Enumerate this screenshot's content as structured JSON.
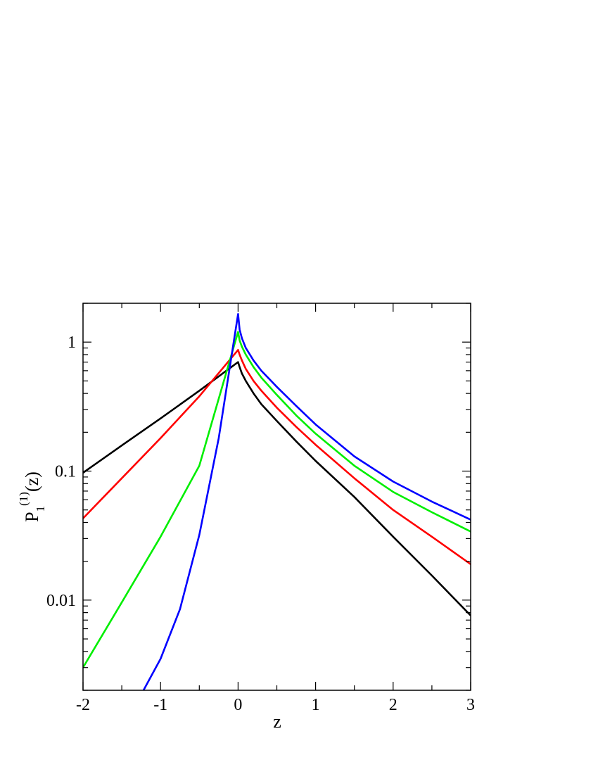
{
  "chart_data": {
    "type": "line",
    "title": "",
    "xlabel": "z",
    "ylabel": {
      "base": "P",
      "subscript": "1",
      "superscript": "(1)",
      "suffix": "(z)"
    },
    "xlim": [
      -2,
      3
    ],
    "ylim": [
      0.002,
      2.0
    ],
    "yscale": "log",
    "grid": false,
    "legend": "none",
    "x_ticks": [
      {
        "value": -2,
        "label": "-2"
      },
      {
        "value": -1,
        "label": "-1"
      },
      {
        "value": 0,
        "label": "0"
      },
      {
        "value": 1,
        "label": "1"
      },
      {
        "value": 2,
        "label": "2"
      },
      {
        "value": 3,
        "label": "3"
      }
    ],
    "y_ticks": [
      {
        "value": 0.01,
        "label": "0.01"
      },
      {
        "value": 0.1,
        "label": "0.1"
      },
      {
        "value": 1,
        "label": "1"
      }
    ],
    "series": [
      {
        "color": "#000000",
        "x": [
          -2,
          -1.5,
          -1,
          -0.5,
          0,
          0.02,
          0.05,
          0.1,
          0.2,
          0.3,
          0.5,
          0.75,
          1.0,
          1.5,
          2.0,
          2.5,
          3.0
        ],
        "y": [
          0.097,
          0.158,
          0.256,
          0.42,
          0.7,
          0.64,
          0.57,
          0.5,
          0.4,
          0.33,
          0.245,
          0.17,
          0.12,
          0.063,
          0.031,
          0.0155,
          0.0076
        ]
      },
      {
        "color": "#ff0000",
        "x": [
          -2,
          -1.5,
          -1,
          -0.5,
          0,
          0.02,
          0.05,
          0.1,
          0.2,
          0.3,
          0.5,
          0.75,
          1.0,
          1.5,
          2.0,
          2.5,
          3.0
        ],
        "y": [
          0.043,
          0.088,
          0.18,
          0.38,
          0.87,
          0.8,
          0.72,
          0.62,
          0.5,
          0.42,
          0.31,
          0.22,
          0.16,
          0.088,
          0.05,
          0.031,
          0.019
        ]
      },
      {
        "color": "#00ee00",
        "x": [
          -2,
          -1.5,
          -1,
          -0.5,
          0,
          0.02,
          0.05,
          0.1,
          0.2,
          0.3,
          0.5,
          0.75,
          1.0,
          1.5,
          2.0,
          2.5,
          3.0
        ],
        "y": [
          0.003,
          0.0096,
          0.031,
          0.11,
          1.2,
          1.03,
          0.92,
          0.8,
          0.64,
          0.53,
          0.39,
          0.27,
          0.195,
          0.11,
          0.069,
          0.048,
          0.034
        ]
      },
      {
        "color": "#0000ff",
        "x": [
          -1.22,
          -1,
          -0.75,
          -0.5,
          -0.25,
          0,
          0.02,
          0.05,
          0.1,
          0.2,
          0.3,
          0.5,
          0.75,
          1.0,
          1.5,
          2.0,
          2.5,
          3.0
        ],
        "y": [
          0.002,
          0.0035,
          0.0085,
          0.032,
          0.18,
          1.65,
          1.25,
          1.07,
          0.9,
          0.72,
          0.6,
          0.45,
          0.32,
          0.23,
          0.13,
          0.083,
          0.058,
          0.042
        ]
      }
    ]
  }
}
